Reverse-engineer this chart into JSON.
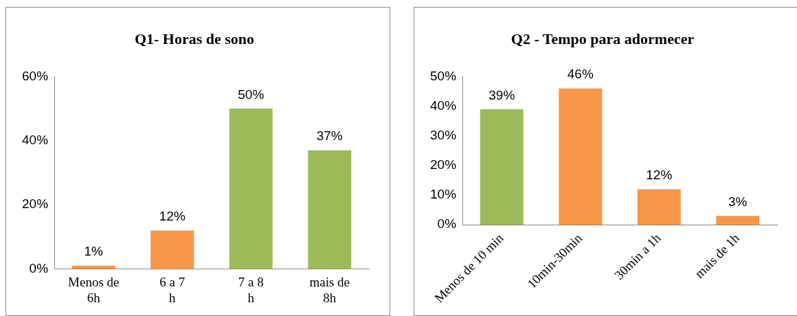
{
  "chart_data": [
    {
      "type": "bar",
      "title": "Q1- Horas de sono",
      "categories": [
        "Menos de 6h",
        "6 a 7 h",
        "7 a 8 h",
        "mais de 8h"
      ],
      "values": [
        1,
        12,
        50,
        37
      ],
      "colors": [
        "#f79646",
        "#f79646",
        "#9bbb59",
        "#9bbb59"
      ],
      "value_labels": [
        "1%",
        "12%",
        "50%",
        "37%"
      ],
      "ylim": [
        0,
        60
      ],
      "yticks": [
        {
          "value": 0,
          "label": "0%"
        },
        {
          "value": 20,
          "label": "20%"
        },
        {
          "value": 40,
          "label": "40%"
        },
        {
          "value": 60,
          "label": "60%"
        }
      ],
      "grid": false,
      "legend": false
    },
    {
      "type": "bar",
      "title": "Q2 - Tempo para adormecer",
      "categories": [
        "Menos de 10 min",
        "10min-30min",
        "30min a 1h",
        "mais de 1h"
      ],
      "values": [
        39,
        46,
        12,
        3
      ],
      "colors": [
        "#9bbb59",
        "#f79646",
        "#f79646",
        "#f79646"
      ],
      "value_labels": [
        "39%",
        "46%",
        "12%",
        "3%"
      ],
      "ylim": [
        0,
        50
      ],
      "yticks": [
        {
          "value": 0,
          "label": "0%"
        },
        {
          "value": 10,
          "label": "10%"
        },
        {
          "value": 20,
          "label": "20%"
        },
        {
          "value": 30,
          "label": "30%"
        },
        {
          "value": 40,
          "label": "40%"
        },
        {
          "value": 50,
          "label": "50%"
        }
      ],
      "grid": false,
      "legend": false
    }
  ]
}
